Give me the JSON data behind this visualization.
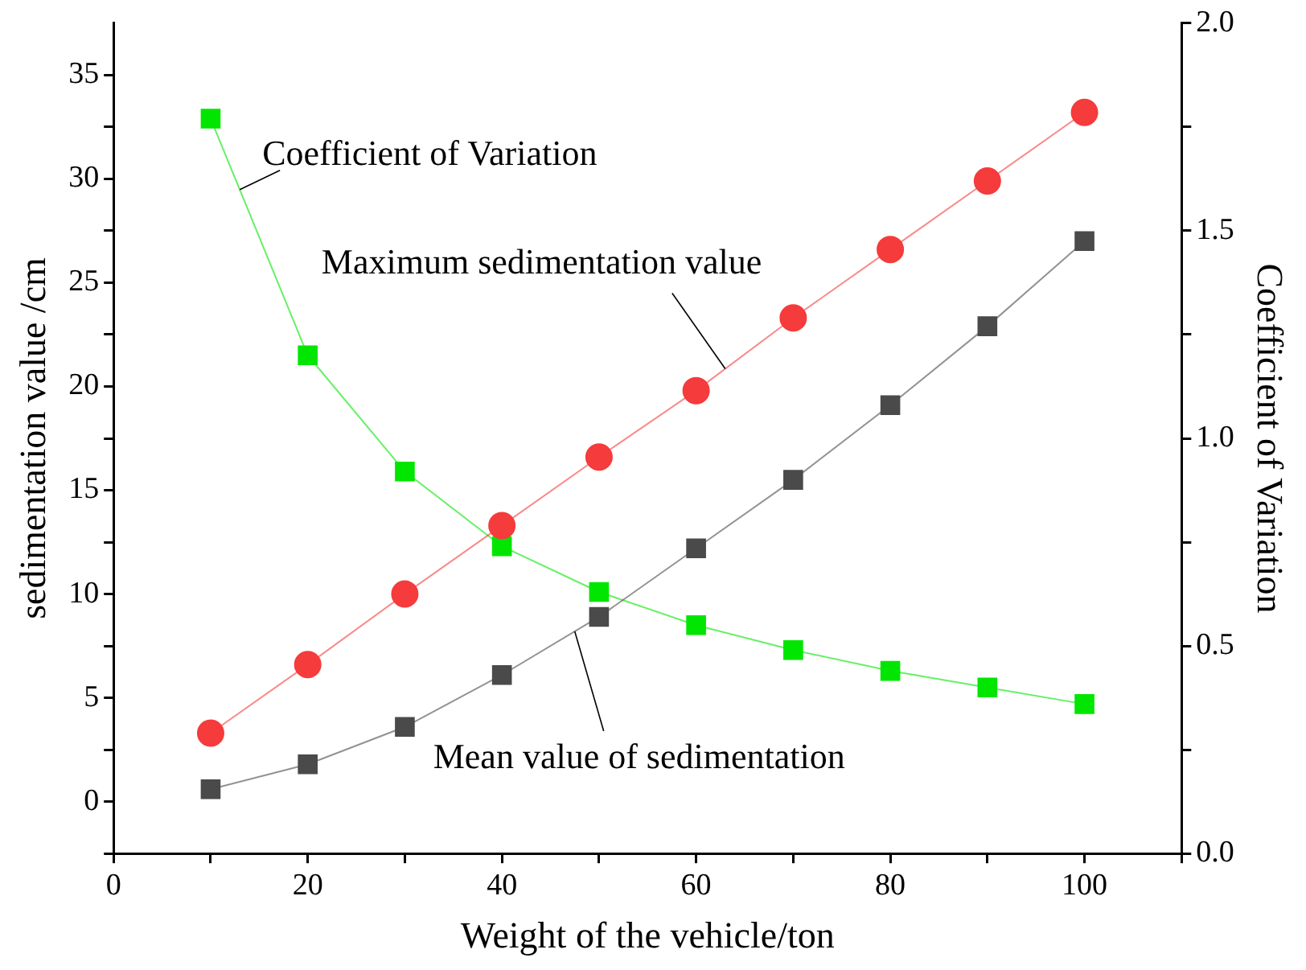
{
  "chart_data": {
    "type": "line",
    "xlabel": "Weight of the vehicle/ton",
    "ylabel": "sedimentation value /cm",
    "y2label": "Coefficient of Variation",
    "x": [
      10,
      20,
      30,
      40,
      50,
      60,
      70,
      80,
      90,
      100
    ],
    "series": [
      {
        "name": "Maximum sedimentation value",
        "color": "#f53b3b",
        "values": [
          3.3,
          6.6,
          10.0,
          13.3,
          16.6,
          19.8,
          23.3,
          26.6,
          29.9,
          33.2
        ]
      },
      {
        "name": "Mean value of sedimentation",
        "color": "#4a4a4a",
        "values": [
          0.6,
          1.8,
          3.6,
          6.1,
          8.9,
          12.2,
          15.5,
          19.1,
          22.9,
          27.0
        ],
        "marker": "square"
      },
      {
        "name": "Coefficient of Variation",
        "color": "#00e600",
        "values": [
          1.77,
          1.2,
          0.92,
          0.74,
          0.63,
          0.55,
          0.49,
          0.44,
          0.4,
          0.36
        ],
        "axis": "y2",
        "marker": "square"
      }
    ],
    "marker": "circle",
    "xlim": [
      0,
      110
    ],
    "xticks": [
      0,
      {
        "value": 10,
        "label": null
      },
      20,
      {
        "value": 30,
        "label": null
      },
      40,
      {
        "value": 50,
        "label": null
      },
      60,
      {
        "value": 70,
        "label": null
      },
      80,
      {
        "value": 90,
        "label": null
      },
      100,
      {
        "value": 110,
        "label": null
      }
    ],
    "ylim": [
      -2.5,
      37.5
    ],
    "yticks": [
      {
        "value": -2.5,
        "label": null
      },
      0,
      {
        "value": 2.5,
        "label": null
      },
      5,
      {
        "value": 7.5,
        "label": null
      },
      10,
      {
        "value": 12.5,
        "label": null
      },
      15,
      {
        "value": 17.5,
        "label": null
      },
      20,
      {
        "value": 22.5,
        "label": null
      },
      25,
      {
        "value": 27.5,
        "label": null
      },
      30,
      {
        "value": 32.5,
        "label": null
      },
      35
    ],
    "y2lim": [
      0,
      2
    ],
    "y2ticks": [
      {
        "value": 0,
        "label": "0.0"
      },
      {
        "value": 0.25,
        "label": null
      },
      {
        "value": 0.5,
        "label": "0.5"
      },
      {
        "value": 0.75,
        "label": null
      },
      {
        "value": 1,
        "label": "1.0"
      },
      {
        "value": 1.25,
        "label": null
      },
      {
        "value": 1.5,
        "label": "1.5"
      },
      {
        "value": 1.75,
        "label": null
      },
      {
        "value": 2,
        "label": "2.0"
      }
    ],
    "grid": false,
    "legend": false
  }
}
